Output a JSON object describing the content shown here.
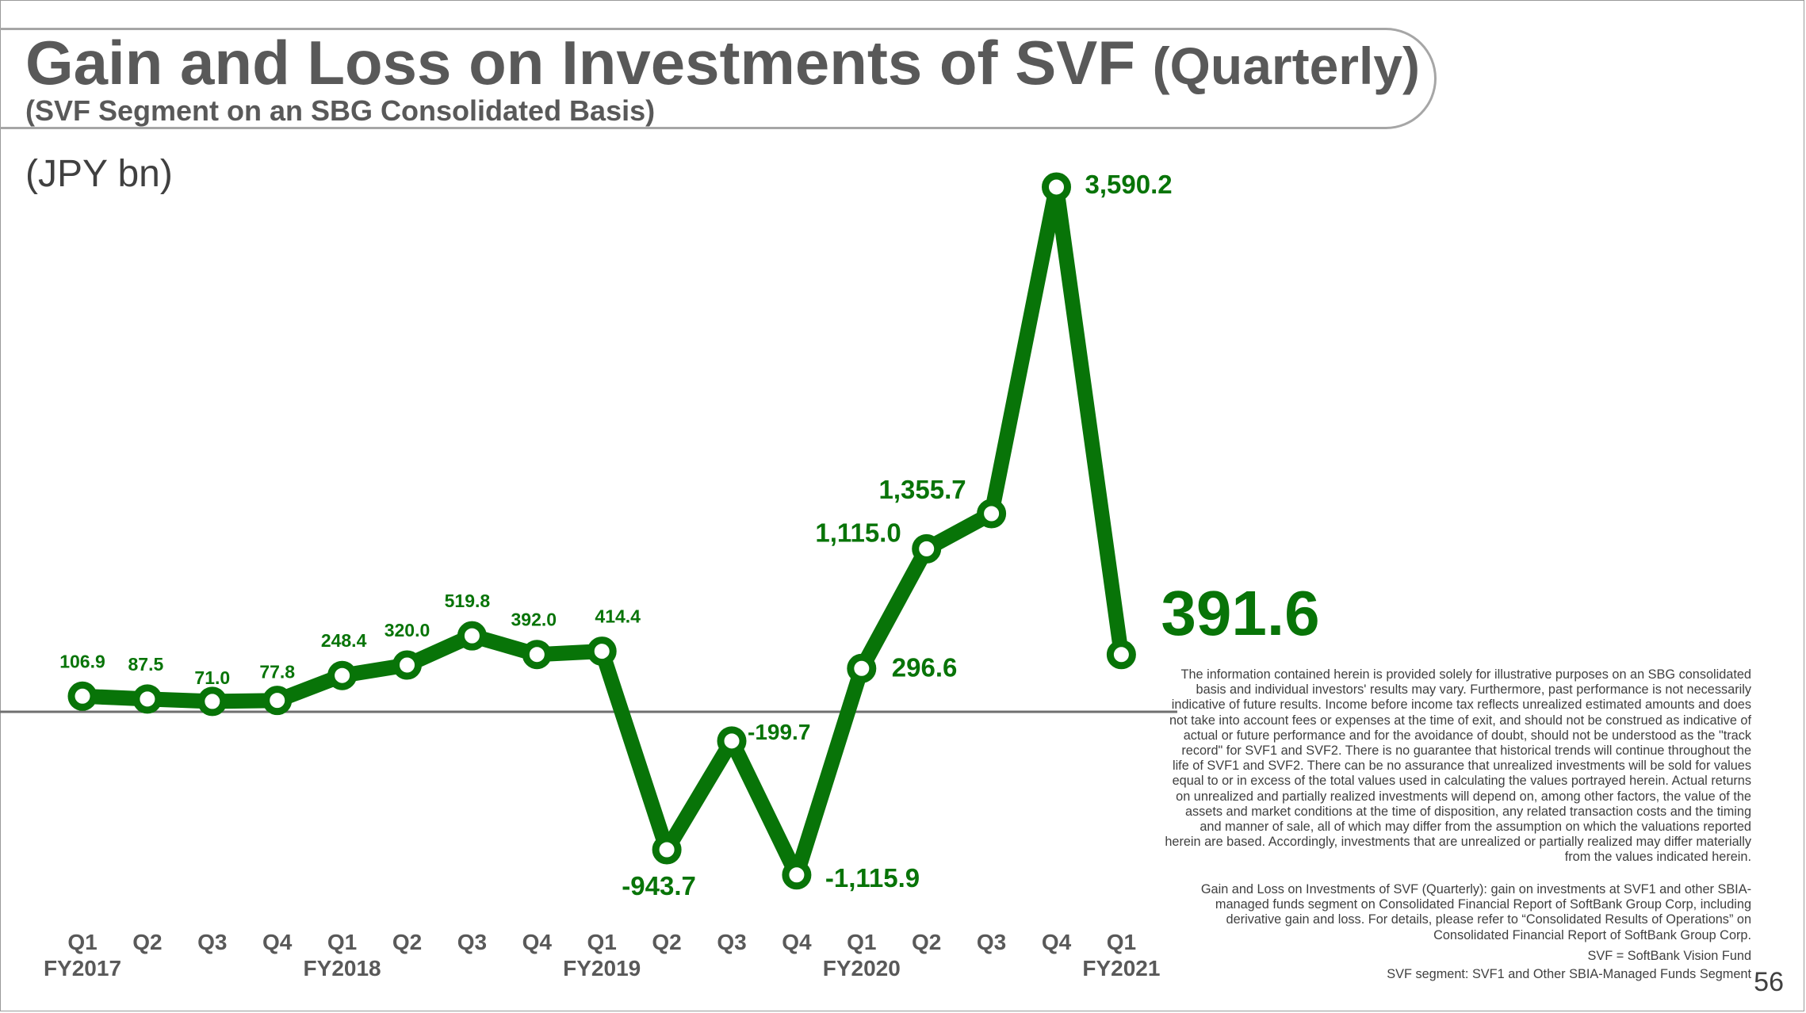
{
  "header": {
    "title_main": "Gain and Loss on Investments of SVF",
    "title_suffix": "(Quarterly)",
    "subtitle": "(SVF Segment on an SBG Consolidated Basis)",
    "unit": "(JPY bn)"
  },
  "chart_data": {
    "type": "line",
    "title": "Gain and Loss on Investments of SVF (Quarterly)",
    "ylabel": "(JPY bn)",
    "xlabel": "",
    "color": "#087408",
    "categories": [
      "Q1",
      "Q2",
      "Q3",
      "Q4",
      "Q1",
      "Q2",
      "Q3",
      "Q4",
      "Q1",
      "Q2",
      "Q3",
      "Q4",
      "Q1",
      "Q2",
      "Q3",
      "Q4",
      "Q1"
    ],
    "fiscal_years": [
      {
        "label": "FY2017",
        "start_index": 0
      },
      {
        "label": "FY2018",
        "start_index": 4
      },
      {
        "label": "FY2019",
        "start_index": 8
      },
      {
        "label": "FY2020",
        "start_index": 12
      },
      {
        "label": "FY2021",
        "start_index": 16
      }
    ],
    "values": [
      106.9,
      87.5,
      71.0,
      77.8,
      248.4,
      320.0,
      519.8,
      392.0,
      414.4,
      -943.7,
      -199.7,
      -1115.9,
      296.6,
      1115.0,
      1355.7,
      3590.2,
      391.6
    ],
    "data_labels": [
      "106.9",
      "87.5",
      "71.0",
      "77.8",
      "248.4",
      "320.0",
      "519.8",
      "392.0",
      "414.4",
      "-943.7",
      "-199.7",
      "-1,115.9",
      "296.6",
      "1,115.0",
      "1,355.7",
      "3,590.2",
      "391.6"
    ],
    "ylim": [
      -1300,
      3700
    ],
    "grid": false,
    "legend": "none"
  },
  "notes": {
    "disclaimer": "The information contained herein is provided solely for illustrative purposes on an SBG consolidated basis and individual investors' results may vary. Furthermore, past performance is not necessarily indicative of future results. Income before income tax reflects unrealized estimated amounts and does not take into account fees or expenses at the time of exit, and should not be construed as indicative of actual or future performance and for the avoidance of doubt, should not be understood as the \"track record\" for SVF1 and SVF2. There is no guarantee that historical trends will continue throughout the life of SVF1 and SVF2. There can be no assurance that unrealized investments will be sold for values equal to or in excess of the total values used in calculating the values portrayed herein. Actual returns on unrealized and partially realized investments will depend on, among other factors, the value of the assets and market conditions at the time of disposition, any related transaction costs and the timing and manner of sale, all of which may differ from the assumption on which the valuations reported herein are based. Accordingly, investments that are unrealized or partially realized may differ materially from the values indicated herein.",
    "definition": "Gain and Loss on Investments of SVF (Quarterly): gain on investments at SVF1 and other SBIA-managed funds segment on Consolidated Financial Report of SoftBank Group Corp, including derivative gain and loss. For details, please refer to “Consolidated Results of Operations” on Consolidated Financial Report of SoftBank Group Corp.",
    "svf_abbrev": "SVF = SoftBank Vision Fund",
    "segment_note": "SVF segment: SVF1 and Other SBIA-Managed Funds Segment"
  },
  "page_number": "56"
}
